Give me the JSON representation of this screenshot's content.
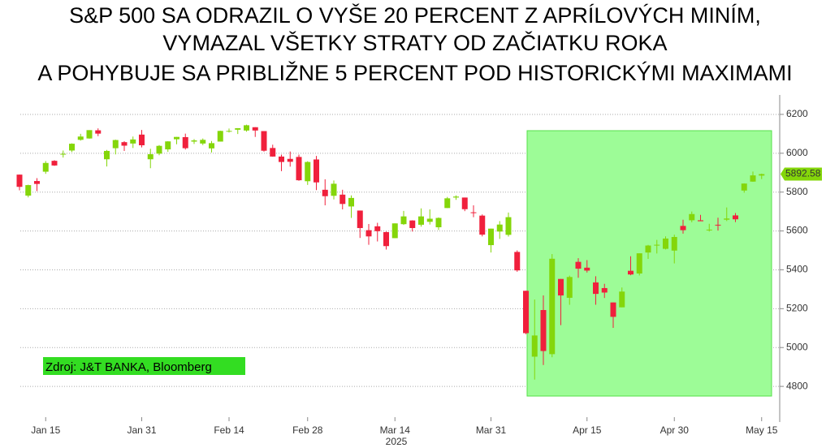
{
  "chart_data": {
    "type": "candlestick",
    "title": [
      "S&P 500 SA ODRAZIL O VYŠE 20 PERCENT Z APRÍLOVÝCH MINÍM,",
      "VYMAZAL VŠETKY STRATY OD ZAČIATKU ROKA",
      "A POHYBUJE SA PRIBLIŽNE 5 PERCENT POD HISTORICKÝMI MAXIMAMI"
    ],
    "source": "Zdroj: J&T BANKA, Bloomberg",
    "x_sublabel": "2025",
    "categories": [
      null,
      null,
      null,
      "Jan 15",
      null,
      null,
      null,
      null,
      null,
      null,
      null,
      null,
      null,
      null,
      "Jan 31",
      null,
      null,
      null,
      null,
      null,
      null,
      null,
      null,
      null,
      "Feb 14",
      null,
      null,
      null,
      null,
      null,
      null,
      null,
      null,
      "Feb 28",
      null,
      null,
      null,
      null,
      null,
      null,
      null,
      null,
      null,
      "Mar 14",
      null,
      null,
      null,
      null,
      null,
      null,
      null,
      null,
      null,
      null,
      "Mar 31",
      null,
      null,
      null,
      null,
      null,
      null,
      null,
      null,
      null,
      null,
      "Apr 15",
      null,
      null,
      null,
      null,
      null,
      null,
      null,
      null,
      null,
      "Apr 30",
      null,
      null,
      null,
      null,
      null,
      null,
      null,
      null,
      null,
      "May 15"
    ],
    "open": [
      5890,
      5782,
      5857,
      5905,
      5961,
      5996,
      6014,
      6069,
      6076,
      6118,
      5969,
      6026,
      6057,
      6050,
      6096,
      5969,
      5998,
      6020,
      6072,
      6083,
      6060,
      6050,
      6025,
      6060,
      6115,
      6121,
      6117,
      6134,
      6114,
      6027,
      5983,
      5971,
      5981,
      5856,
      5968,
      5812,
      5781,
      5787,
      5726,
      5705,
      5604,
      5624,
      5594,
      5563,
      5635,
      5654,
      5632,
      5647,
      5619,
      5718,
      5772,
      5772,
      5696,
      5679,
      5527,
      5597,
      5580,
      5492,
      5292,
      4953,
      5193,
      4966,
      5353,
      5256,
      5441,
      5411,
      5335,
      5306,
      5232,
      5207,
      5395,
      5381,
      5489,
      5529,
      5508,
      5499,
      5626,
      5655,
      5655,
      5606,
      5632,
      5658,
      5680,
      5808,
      5854,
      5885
    ],
    "high": [
      5890,
      5838,
      5872,
      5960,
      5964,
      6014,
      6051,
      6100,
      6119,
      6128,
      6017,
      6070,
      6062,
      6086,
      6120,
      6023,
      6042,
      6062,
      6084,
      6101,
      6073,
      6076,
      6063,
      6116,
      6127,
      6129,
      6147,
      6134,
      6114,
      6044,
      5993,
      6009,
      5993,
      5959,
      5986,
      5866,
      5860,
      5812,
      5783,
      5705,
      5636,
      5642,
      5597,
      5639,
      5703,
      5655,
      5716,
      5711,
      5670,
      5775,
      5783,
      5772,
      5732,
      5685,
      5612,
      5651,
      5695,
      5500,
      5292,
      5247,
      5268,
      5481,
      5353,
      5370,
      5460,
      5450,
      5367,
      5328,
      5232,
      5309,
      5470,
      5485,
      5528,
      5554,
      5572,
      5581,
      5658,
      5700,
      5683,
      5637,
      5668,
      5721,
      5692,
      5845,
      5906,
      5895
    ],
    "low": [
      5809,
      5773,
      5805,
      5894,
      5935,
      5978,
      6006,
      6065,
      6075,
      6088,
      5932,
      5994,
      6012,
      6027,
      6030,
      5923,
      5990,
      6007,
      6046,
      6019,
      6048,
      6042,
      6004,
      6060,
      6107,
      6099,
      6111,
      6084,
      6008,
      5982,
      5908,
      5931,
      5858,
      5837,
      5810,
      5732,
      5762,
      5711,
      5667,
      5564,
      5529,
      5546,
      5504,
      5563,
      5631,
      5597,
      5622,
      5633,
      5605,
      5718,
      5760,
      5702,
      5671,
      5572,
      5489,
      5559,
      5571,
      5390,
      5069,
      4835,
      4910,
      4950,
      5115,
      5220,
      5359,
      5386,
      5220,
      5255,
      5101,
      5207,
      5372,
      5371,
      5456,
      5484,
      5505,
      5433,
      5586,
      5645,
      5651,
      5597,
      5602,
      5651,
      5646,
      5797,
      5853,
      5867
    ],
    "close": [
      5827,
      5836,
      5842,
      5950,
      5937,
      5997,
      6049,
      6086,
      6119,
      6101,
      6012,
      6068,
      6039,
      6071,
      6041,
      5995,
      6038,
      6061,
      6084,
      6026,
      6066,
      6069,
      6052,
      6115,
      6115,
      6129,
      6144,
      6117,
      6013,
      5983,
      5955,
      5956,
      5861,
      5955,
      5850,
      5779,
      5843,
      5739,
      5770,
      5615,
      5572,
      5599,
      5522,
      5639,
      5675,
      5615,
      5675,
      5663,
      5667,
      5768,
      5777,
      5712,
      5693,
      5581,
      5612,
      5633,
      5671,
      5397,
      5074,
      5062,
      4982,
      5457,
      5268,
      5363,
      5406,
      5396,
      5276,
      5283,
      5158,
      5288,
      5376,
      5485,
      5525,
      5529,
      5561,
      5569,
      5604,
      5687,
      5650,
      5607,
      5631,
      5664,
      5660,
      5844,
      5886,
      5892.58
    ],
    "up_color": "#84d60a",
    "down_color": "#f0203c",
    "ylim": [
      4650,
      6300
    ],
    "yticks": [
      4800,
      5000,
      5200,
      5400,
      5600,
      5800,
      6000,
      6200
    ],
    "grid": true
  }
}
